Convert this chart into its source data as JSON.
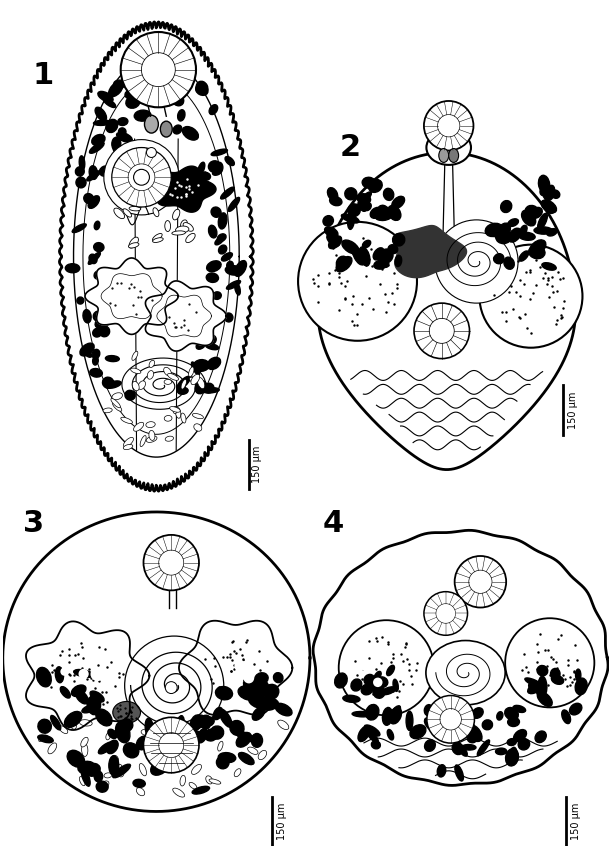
{
  "background_color": "#ffffff",
  "figure_width": 6.12,
  "figure_height": 8.5,
  "dpi": 100,
  "scale_bar_text": "150 μm",
  "line_color": "#000000"
}
